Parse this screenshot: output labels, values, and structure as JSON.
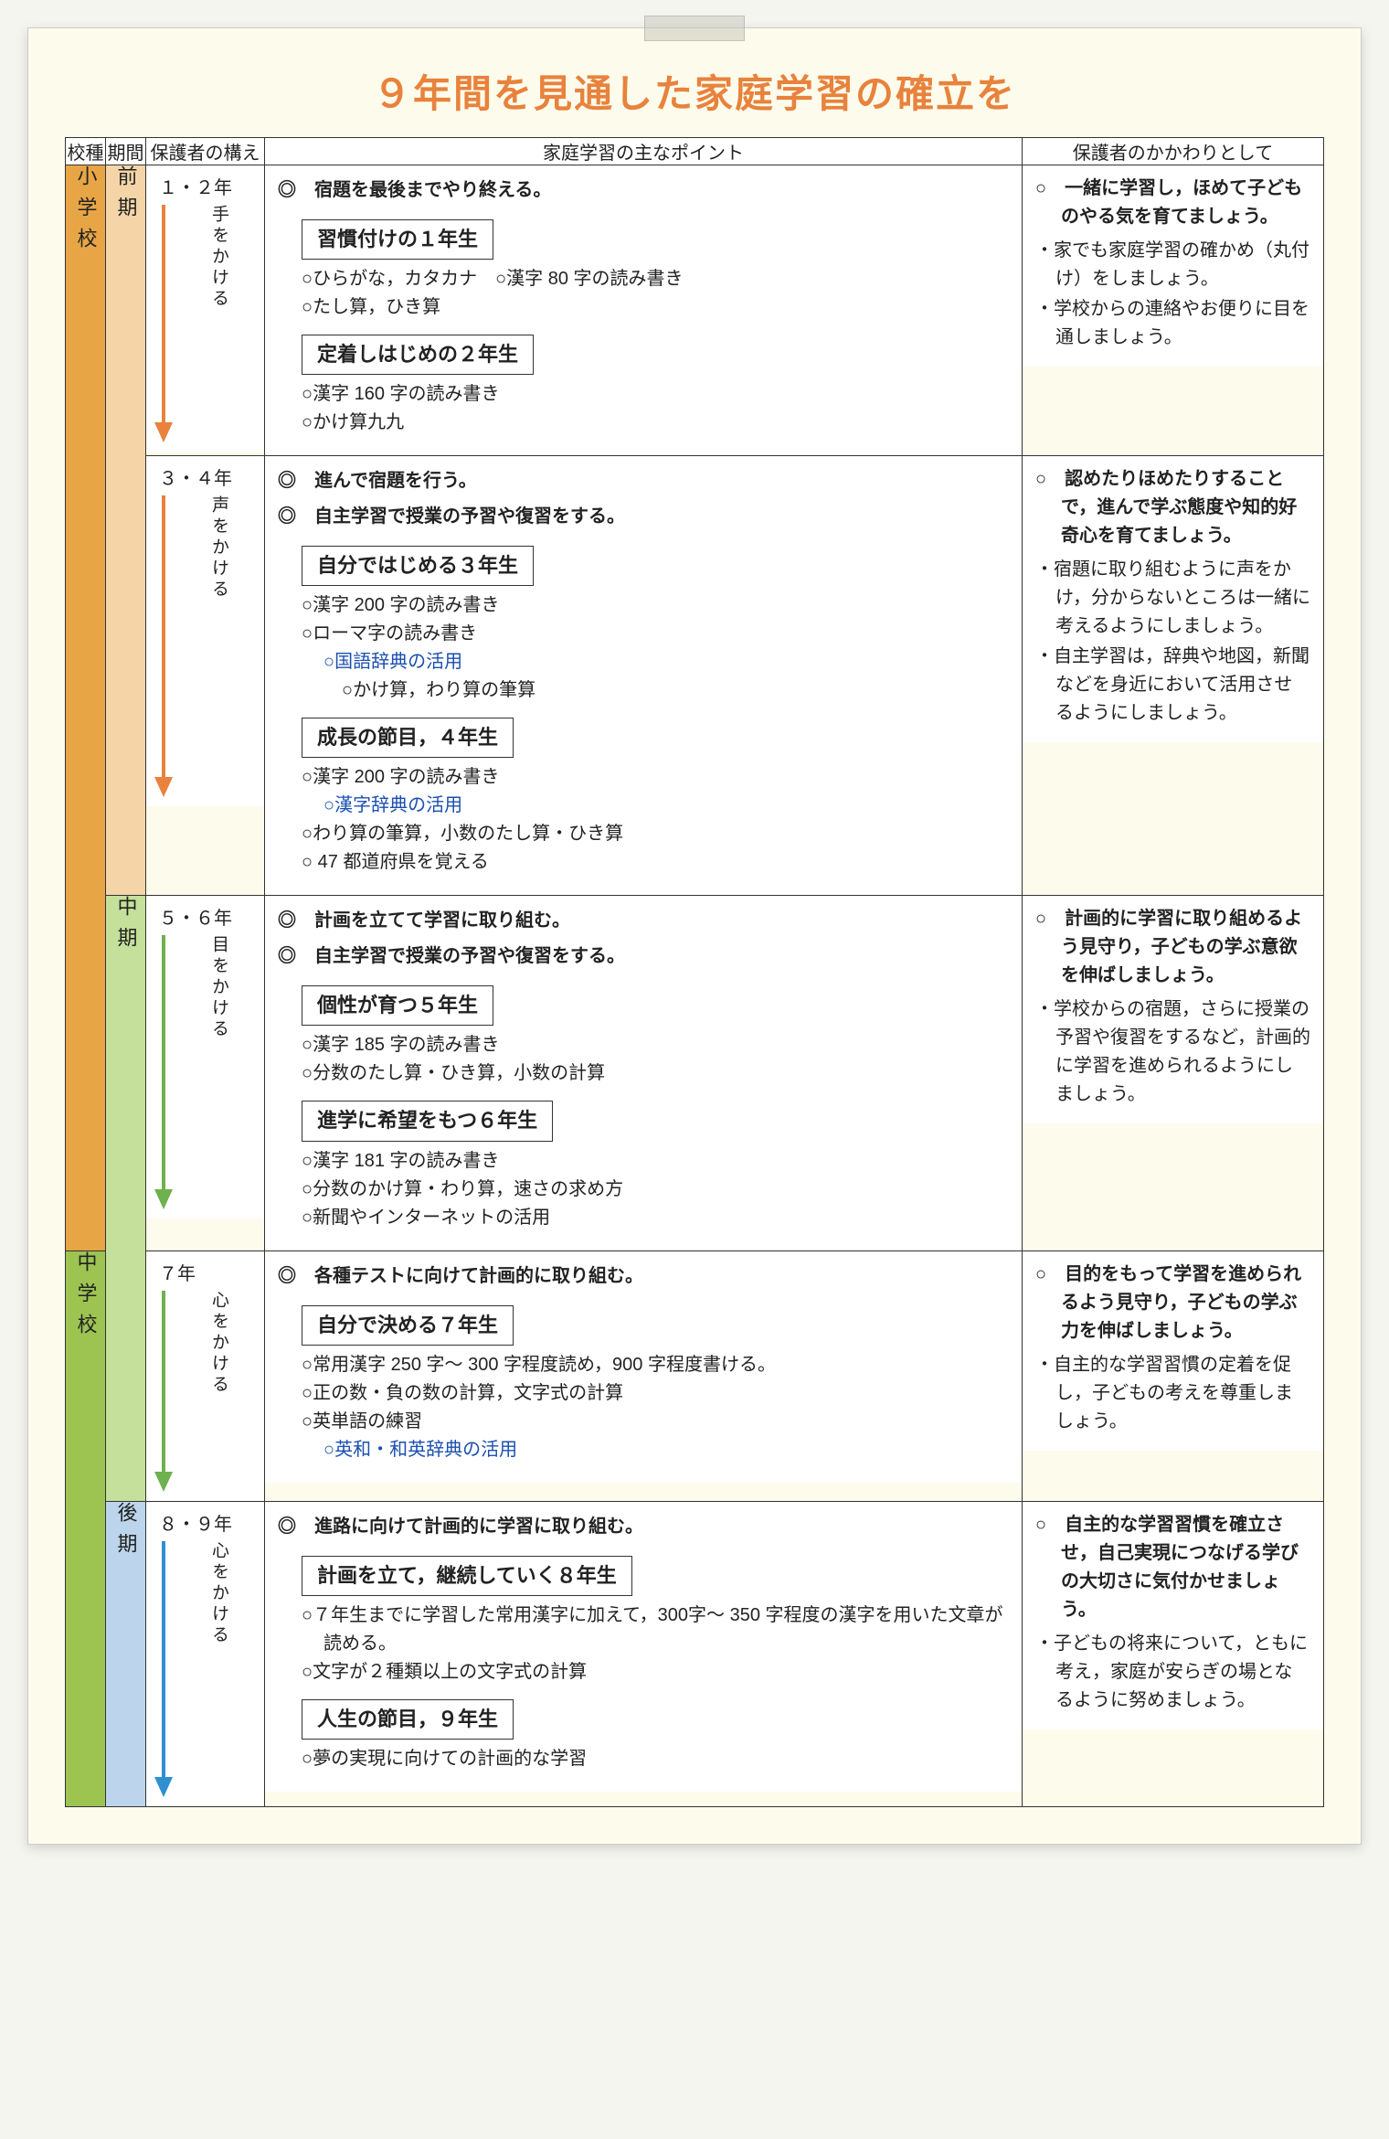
{
  "title": "９年間を見通した家庭学習の確立を",
  "colors": {
    "title": "#e8823c",
    "school_es": "#e8a545",
    "school_jh": "#9dc451",
    "period_zen": "#f5d5a8",
    "period_chu": "#c5e09a",
    "period_kou": "#bcd5ec",
    "arrow_orange": "#e8823c",
    "arrow_green": "#6fb04f",
    "arrow_blue": "#2f8fd0",
    "link_blue": "#1a4fb0"
  },
  "headers": {
    "school": "校種",
    "period": "期間",
    "stance": "保護者の構え",
    "points": "家庭学習の主なポイント",
    "parent": "保護者のかかわりとして"
  },
  "school_labels": {
    "es": "小学校",
    "jh": "中学校"
  },
  "period_labels": {
    "zen": "前期",
    "chu": "中期",
    "kou": "後期"
  },
  "rows": [
    {
      "id": "r12",
      "years": "１・２年",
      "kakeru": "手をかける",
      "arrow_color": "#e8823c",
      "arrow_height": 260,
      "headlines": [
        "◎　宿題を最後までやり終える。"
      ],
      "blocks": [
        {
          "title": "習慣付けの１年生",
          "items": [
            {
              "text": "○ひらがな，カタカナ　○漢字 80 字の読み書き"
            },
            {
              "text": "○たし算，ひき算"
            }
          ]
        },
        {
          "title": "定着しはじめの２年生",
          "items": [
            {
              "text": "○漢字 160 字の読み書き"
            },
            {
              "text": "○かけ算九九"
            }
          ]
        }
      ],
      "parent": {
        "lead": "○　一緒に学習し，ほめて子どものやる気を育てましょう。",
        "items": [
          "・家でも家庭学習の確かめ（丸付け）をしましょう。",
          "・学校からの連絡やお便りに目を通しましょう。"
        ]
      }
    },
    {
      "id": "r34",
      "years": "３・４年",
      "kakeru": "声をかける",
      "arrow_color": "#e8823c",
      "arrow_height": 330,
      "headlines": [
        "◎　進んで宿題を行う。",
        "◎　自主学習で授業の予習や復習をする。"
      ],
      "blocks": [
        {
          "title": "自分ではじめる３年生",
          "items": [
            {
              "text": "○漢字 200 字の読み書き"
            },
            {
              "text": "○ローマ字の読み書き"
            },
            {
              "text": "○国語辞典の活用　○かけ算，わり算の筆算",
              "prefix_blue_len": 8
            }
          ]
        },
        {
          "title": "成長の節目，４年生",
          "items": [
            {
              "text": "○漢字 200 字の読み書き　",
              "suffix_blue": "○漢字辞典の活用"
            },
            {
              "text": "○わり算の筆算，小数のたし算・ひき算"
            },
            {
              "text": "○ 47 都道府県を覚える"
            }
          ]
        }
      ],
      "parent": {
        "lead": "○　認めたりほめたりすることで，進んで学ぶ態度や知的好奇心を育てましょう。",
        "items": [
          "・宿題に取り組むように声をかけ，分からないところは一緒に考えるようにしましょう。",
          "・自主学習は，辞典や地図，新聞などを身近において活用させるようにしましょう。"
        ]
      }
    },
    {
      "id": "r56",
      "years": "５・６年",
      "kakeru": "目をかける",
      "arrow_color": "#6fb04f",
      "arrow_height": 300,
      "headlines": [
        "◎　計画を立てて学習に取り組む。",
        "◎　自主学習で授業の予習や復習をする。"
      ],
      "blocks": [
        {
          "title": "個性が育つ５年生",
          "items": [
            {
              "text": "○漢字 185 字の読み書き"
            },
            {
              "text": "○分数のたし算・ひき算，小数の計算"
            }
          ]
        },
        {
          "title": "進学に希望をもつ６年生",
          "items": [
            {
              "text": "○漢字 181 字の読み書き"
            },
            {
              "text": "○分数のかけ算・わり算，速さの求め方"
            },
            {
              "text": "○新聞やインターネットの活用"
            }
          ]
        }
      ],
      "parent": {
        "lead": "○　計画的に学習に取り組めるよう見守り，子どもの学ぶ意欲を伸ばしましょう。",
        "items": [
          "・学校からの宿題，さらに授業の予習や復習をするなど，計画的に学習を進められるようにしましょう。"
        ]
      }
    },
    {
      "id": "r7",
      "years": "７年",
      "kakeru": "心をかける",
      "arrow_color": "#6fb04f",
      "arrow_height": 220,
      "headlines": [
        "◎　各種テストに向けて計画的に取り組む。"
      ],
      "blocks": [
        {
          "title": "自分で決める７年生",
          "items": [
            {
              "text": "○常用漢字 250 字～ 300 字程度読め，900 字程度書ける。"
            },
            {
              "text": "○正の数・負の数の計算，文字式の計算"
            },
            {
              "text": "○英単語の練習　　",
              "suffix_blue": "○英和・和英辞典の活用"
            }
          ]
        }
      ],
      "parent": {
        "lead": "○　目的をもって学習を進められるよう見守り，子どもの学ぶ力を伸ばしましょう。",
        "items": [
          "・自主的な学習習慣の定着を促し，子どもの考えを尊重しましょう。"
        ]
      }
    },
    {
      "id": "r89",
      "years": "８・９年",
      "kakeru": "心をかける",
      "arrow_color": "#2f8fd0",
      "arrow_height": 280,
      "headlines": [
        "◎　進路に向けて計画的に学習に取り組む。"
      ],
      "blocks": [
        {
          "title": "計画を立て，継続していく８年生",
          "items": [
            {
              "text": "○７年生までに学習した常用漢字に加えて，300字～ 350 字程度の漢字を用いた文章が読める。"
            },
            {
              "text": "○文字が２種類以上の文字式の計算"
            }
          ]
        },
        {
          "title": "人生の節目，９年生",
          "items": [
            {
              "text": "○夢の実現に向けての計画的な学習"
            }
          ]
        }
      ],
      "parent": {
        "lead": "○　自主的な学習習慣を確立させ，自己実現につなげる学びの大切さに気付かせましょう。",
        "items": [
          "・子どもの将来について，ともに考え，家庭が安らぎの場となるように努めましょう。"
        ]
      }
    }
  ]
}
